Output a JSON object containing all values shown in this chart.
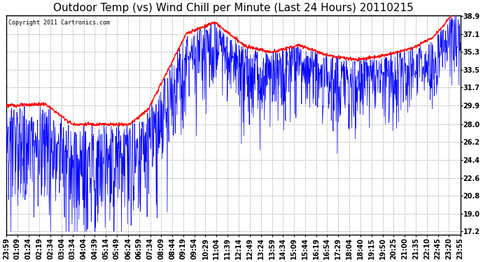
{
  "title": "Outdoor Temp (vs) Wind Chill per Minute (Last 24 Hours) 20110215",
  "copyright": "Copyright 2011 Cartronics.com",
  "ylabel_right": [
    "38.9",
    "37.1",
    "35.3",
    "33.5",
    "31.7",
    "29.9",
    "28.0",
    "26.2",
    "24.4",
    "22.6",
    "20.8",
    "19.0",
    "17.2"
  ],
  "ymin": 17.2,
  "ymax": 38.9,
  "x_labels": [
    "23:59",
    "01:09",
    "01:24",
    "02:19",
    "02:34",
    "03:04",
    "03:34",
    "04:04",
    "04:39",
    "05:14",
    "05:49",
    "06:24",
    "06:59",
    "07:34",
    "08:09",
    "08:44",
    "09:19",
    "09:54",
    "10:29",
    "11:04",
    "11:39",
    "12:14",
    "12:49",
    "13:24",
    "13:59",
    "14:34",
    "15:09",
    "15:44",
    "16:19",
    "16:54",
    "17:29",
    "18:04",
    "18:40",
    "19:15",
    "19:50",
    "20:25",
    "21:00",
    "21:35",
    "22:10",
    "22:45",
    "23:20",
    "23:55"
  ],
  "background_color": "#ffffff",
  "plot_background": "#ffffff",
  "grid_color": "#aaaaaa",
  "line_blue": "#0000ff",
  "line_red": "#ff0000",
  "title_fontsize": 11,
  "tick_fontsize": 7,
  "copyright_fontsize": 6
}
